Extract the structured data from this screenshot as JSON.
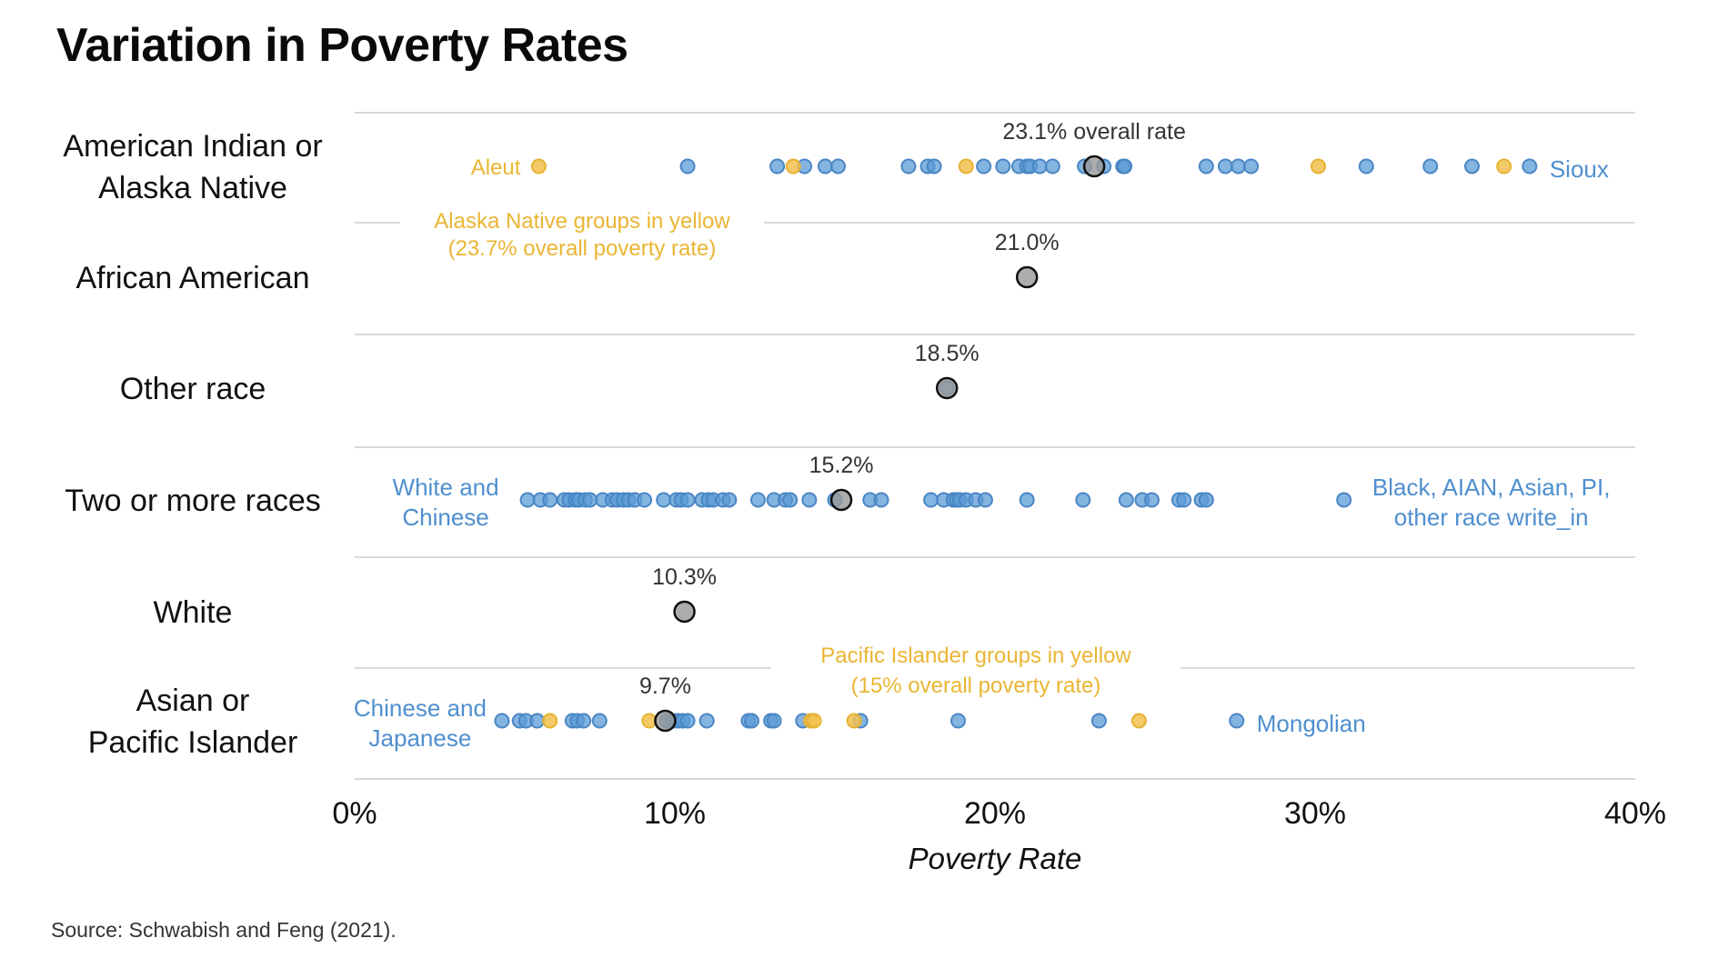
{
  "title": "Variation in Poverty Rates",
  "source": "Source: Schwabish and Feng (2021).",
  "colors": {
    "blue": "#5b9bd5",
    "yellow": "#f2c14e",
    "overall_fill": "#999999",
    "overall_stroke": "#111111",
    "gridline": "#d9d9d9"
  },
  "chart_data": {
    "type": "scatter",
    "title": "Variation in Poverty Rates",
    "xlabel": "Poverty Rate",
    "ylabel": "",
    "xlim": [
      0,
      40
    ],
    "x_ticks": [
      0,
      10,
      20,
      30,
      40
    ],
    "x_tick_labels": [
      "0%",
      "10%",
      "20%",
      "30%",
      "40%"
    ],
    "grid": "horizontal row separators",
    "rows": [
      {
        "label_lines": [
          "American Indian or",
          "Alaska Native"
        ],
        "overall": 23.1,
        "overall_label": "23.1% overall rate",
        "blue_points": [
          10.4,
          13.2,
          14.05,
          14.7,
          15.1,
          17.3,
          17.9,
          18.1,
          19.65,
          20.25,
          20.75,
          21.0,
          21.1,
          21.4,
          21.8,
          22.8,
          23.4,
          24.0,
          24.05,
          26.6,
          27.2,
          27.6,
          28.0,
          31.6,
          33.6,
          34.9,
          36.7
        ],
        "yellow_points": [
          5.75,
          13.7,
          19.1,
          30.1,
          35.9
        ],
        "annotations": [
          {
            "text_lines": [
              "Aleut"
            ],
            "color": "yellow",
            "anchor_value": 5.75,
            "side": "left"
          },
          {
            "text_lines": [
              "Sioux"
            ],
            "color": "blue",
            "anchor_value": 36.7,
            "side": "right"
          },
          {
            "text_lines": [
              "Alaska Native groups in yellow",
              "(23.7% overall poverty rate)"
            ],
            "color": "yellow",
            "position": "below-left"
          }
        ]
      },
      {
        "label_lines": [
          "African American"
        ],
        "overall": 21.0,
        "overall_label": "21.0%",
        "blue_points": [],
        "yellow_points": [],
        "annotations": []
      },
      {
        "label_lines": [
          "Other race"
        ],
        "overall": 18.5,
        "overall_label": "18.5%",
        "blue_points": [
          18.5
        ],
        "yellow_points": [],
        "annotations": []
      },
      {
        "label_lines": [
          "Two or more races"
        ],
        "overall": 15.2,
        "overall_label": "15.2%",
        "blue_points": [
          5.4,
          5.8,
          6.1,
          6.55,
          6.7,
          6.9,
          7.0,
          7.2,
          7.35,
          7.75,
          8.05,
          8.2,
          8.4,
          8.55,
          8.75,
          9.05,
          9.65,
          10.05,
          10.2,
          10.4,
          10.85,
          11.05,
          11.2,
          11.5,
          11.7,
          12.6,
          13.1,
          13.45,
          13.6,
          14.2,
          15.0,
          16.1,
          16.45,
          18.0,
          18.4,
          18.7,
          18.8,
          18.9,
          19.1,
          19.4,
          19.7,
          21.0,
          22.75,
          24.1,
          24.6,
          24.9,
          25.75,
          25.9,
          26.45,
          26.6,
          30.9
        ],
        "yellow_points": [],
        "annotations": [
          {
            "text_lines": [
              "White and",
              "Chinese"
            ],
            "color": "blue",
            "anchor_value": 5.4,
            "side": "left"
          },
          {
            "text_lines": [
              "Black, AIAN, Asian, PI,",
              "other race write_in"
            ],
            "color": "blue",
            "anchor_value": 30.9,
            "side": "right"
          }
        ]
      },
      {
        "label_lines": [
          "White"
        ],
        "overall": 10.3,
        "overall_label": "10.3%",
        "blue_points": [],
        "yellow_points": [],
        "annotations": []
      },
      {
        "label_lines": [
          "Asian or",
          "Pacific Islander"
        ],
        "overall": 9.7,
        "overall_label": "9.7%",
        "blue_points": [
          4.6,
          5.15,
          5.35,
          5.7,
          6.8,
          6.95,
          7.15,
          7.65,
          9.75,
          9.95,
          10.1,
          10.25,
          10.4,
          11.0,
          12.3,
          12.4,
          13.0,
          13.1,
          14.0,
          15.8,
          18.85,
          23.25,
          27.55
        ],
        "yellow_points": [
          6.1,
          9.2,
          14.25,
          14.35,
          15.6,
          24.5
        ],
        "annotations": [
          {
            "text_lines": [
              "Chinese and",
              "Japanese"
            ],
            "color": "blue",
            "anchor_value": 4.6,
            "side": "left"
          },
          {
            "text_lines": [
              "Mongolian"
            ],
            "color": "blue",
            "anchor_value": 27.55,
            "side": "right"
          },
          {
            "text_lines": [
              "Pacific Islander groups in yellow",
              "(15% overall poverty rate)"
            ],
            "color": "yellow",
            "position": "above-center"
          }
        ]
      }
    ]
  }
}
